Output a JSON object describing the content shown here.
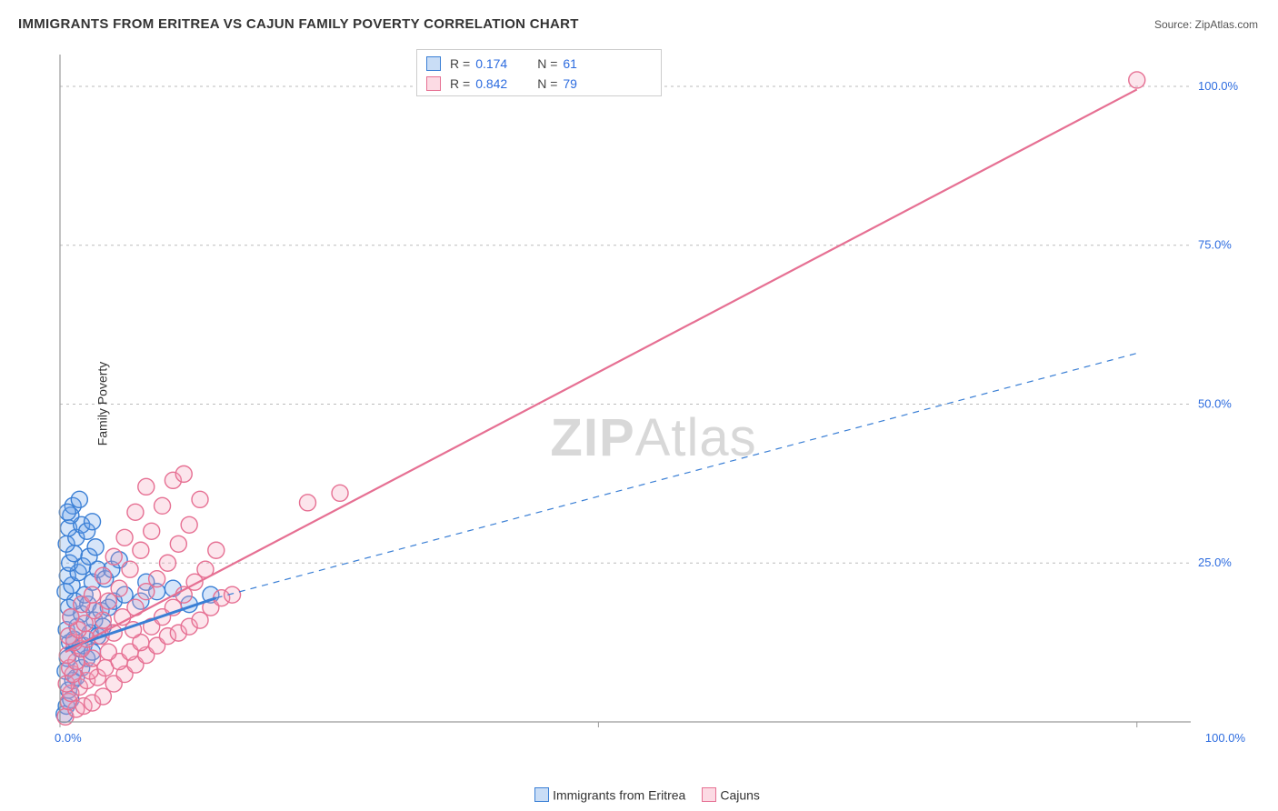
{
  "title": "IMMIGRANTS FROM ERITREA VS CAJUN FAMILY POVERTY CORRELATION CHART",
  "source_label": "Source: ZipAtlas.com",
  "y_axis_label": "Family Poverty",
  "watermark_bold": "ZIP",
  "watermark_light": "Atlas",
  "chart": {
    "type": "scatter-with-regression",
    "background_color": "#ffffff",
    "plot_border_left_color": "#9a9a9a",
    "plot_border_bottom_color": "#9a9a9a",
    "grid_color": "#bbbbbb",
    "grid_dash": "3,4",
    "xlim": [
      0,
      105
    ],
    "ylim": [
      0,
      105
    ],
    "x_ticks": [
      0,
      50,
      100
    ],
    "x_tick_labels": [
      "0.0%",
      "",
      "100.0%"
    ],
    "y_ticks": [
      25,
      50,
      75,
      100
    ],
    "y_tick_labels": [
      "25.0%",
      "50.0%",
      "75.0%",
      "100.0%"
    ],
    "tick_label_color": "#2d6cdf",
    "tick_fontsize": 13,
    "marker_radius": 9,
    "marker_stroke_width": 1.4,
    "marker_fill_opacity": 0.28,
    "series": [
      {
        "id": "eritrea",
        "label": "Immigrants from Eritrea",
        "color_stroke": "#3a7fd5",
        "color_fill": "#6aa3e8",
        "R": "0.174",
        "N": "61",
        "points": [
          [
            0.4,
            1.2
          ],
          [
            0.6,
            2.5
          ],
          [
            1.0,
            3.5
          ],
          [
            0.8,
            5.0
          ],
          [
            1.2,
            6.5
          ],
          [
            0.5,
            8.0
          ],
          [
            1.5,
            7.0
          ],
          [
            2.0,
            8.5
          ],
          [
            0.7,
            10.0
          ],
          [
            1.8,
            11.5
          ],
          [
            2.5,
            10.0
          ],
          [
            0.9,
            12.5
          ],
          [
            1.3,
            13.0
          ],
          [
            2.2,
            12.0
          ],
          [
            3.0,
            11.0
          ],
          [
            0.6,
            14.5
          ],
          [
            1.6,
            15.0
          ],
          [
            2.8,
            14.0
          ],
          [
            3.5,
            13.5
          ],
          [
            1.0,
            16.5
          ],
          [
            2.0,
            17.0
          ],
          [
            0.8,
            18.0
          ],
          [
            3.2,
            16.0
          ],
          [
            4.0,
            15.0
          ],
          [
            1.4,
            19.0
          ],
          [
            2.6,
            18.5
          ],
          [
            0.5,
            20.5
          ],
          [
            3.8,
            17.5
          ],
          [
            1.1,
            21.5
          ],
          [
            2.3,
            20.0
          ],
          [
            0.7,
            23.0
          ],
          [
            4.5,
            18.0
          ],
          [
            1.7,
            23.5
          ],
          [
            3.0,
            22.0
          ],
          [
            0.9,
            25.0
          ],
          [
            2.1,
            24.5
          ],
          [
            5.0,
            19.0
          ],
          [
            1.3,
            26.5
          ],
          [
            3.5,
            24.0
          ],
          [
            0.6,
            28.0
          ],
          [
            2.7,
            26.0
          ],
          [
            4.2,
            22.5
          ],
          [
            1.5,
            29.0
          ],
          [
            0.8,
            30.5
          ],
          [
            6.0,
            20.0
          ],
          [
            3.3,
            27.5
          ],
          [
            2.0,
            31.0
          ],
          [
            1.0,
            32.5
          ],
          [
            7.5,
            19.0
          ],
          [
            4.8,
            24.0
          ],
          [
            2.5,
            30.0
          ],
          [
            1.2,
            34.0
          ],
          [
            0.7,
            33.0
          ],
          [
            8.0,
            22.0
          ],
          [
            5.5,
            25.5
          ],
          [
            3.0,
            31.5
          ],
          [
            1.8,
            35.0
          ],
          [
            9.0,
            20.5
          ],
          [
            10.5,
            21.0
          ],
          [
            12.0,
            18.5
          ],
          [
            14.0,
            20.0
          ]
        ],
        "regression_solid": {
          "from": [
            0.5,
            11.5
          ],
          "to": [
            14.5,
            19.5
          ],
          "width": 3
        },
        "regression_dashed": {
          "from": [
            14.5,
            19.5
          ],
          "to": [
            100,
            58
          ],
          "width": 1.2,
          "dash": "7,6"
        }
      },
      {
        "id": "cajuns",
        "label": "Cajuns",
        "color_stroke": "#e67093",
        "color_fill": "#f5a3ba",
        "R": "0.842",
        "N": "79",
        "points": [
          [
            0.5,
            0.8
          ],
          [
            1.5,
            2.0
          ],
          [
            0.8,
            3.2
          ],
          [
            2.2,
            2.5
          ],
          [
            1.0,
            4.5
          ],
          [
            3.0,
            3.0
          ],
          [
            1.8,
            5.5
          ],
          [
            0.6,
            6.0
          ],
          [
            2.5,
            6.5
          ],
          [
            4.0,
            4.0
          ],
          [
            1.2,
            7.5
          ],
          [
            3.5,
            7.0
          ],
          [
            0.9,
            8.5
          ],
          [
            2.8,
            8.0
          ],
          [
            5.0,
            6.0
          ],
          [
            1.5,
            9.5
          ],
          [
            4.2,
            8.5
          ],
          [
            0.7,
            10.5
          ],
          [
            3.0,
            10.0
          ],
          [
            6.0,
            7.5
          ],
          [
            2.0,
            11.5
          ],
          [
            5.5,
            9.5
          ],
          [
            1.3,
            12.5
          ],
          [
            4.5,
            11.0
          ],
          [
            7.0,
            9.0
          ],
          [
            2.5,
            13.0
          ],
          [
            0.8,
            13.5
          ],
          [
            6.5,
            11.0
          ],
          [
            3.8,
            13.5
          ],
          [
            8.0,
            10.5
          ],
          [
            1.7,
            14.5
          ],
          [
            5.0,
            14.0
          ],
          [
            2.3,
            15.5
          ],
          [
            7.5,
            12.5
          ],
          [
            9.0,
            12.0
          ],
          [
            4.0,
            16.0
          ],
          [
            1.0,
            16.5
          ],
          [
            6.8,
            14.5
          ],
          [
            3.2,
            17.5
          ],
          [
            10.0,
            13.5
          ],
          [
            5.8,
            16.5
          ],
          [
            2.0,
            18.5
          ],
          [
            8.5,
            15.0
          ],
          [
            4.5,
            19.0
          ],
          [
            11.0,
            14.0
          ],
          [
            7.0,
            18.0
          ],
          [
            3.0,
            20.0
          ],
          [
            9.5,
            16.5
          ],
          [
            5.5,
            21.0
          ],
          [
            12.0,
            15.0
          ],
          [
            8.0,
            20.5
          ],
          [
            4.0,
            23.0
          ],
          [
            10.5,
            18.0
          ],
          [
            6.5,
            24.0
          ],
          [
            13.0,
            16.0
          ],
          [
            9.0,
            22.5
          ],
          [
            5.0,
            26.0
          ],
          [
            11.5,
            20.0
          ],
          [
            7.5,
            27.0
          ],
          [
            14.0,
            18.0
          ],
          [
            10.0,
            25.0
          ],
          [
            6.0,
            29.0
          ],
          [
            12.5,
            22.0
          ],
          [
            8.5,
            30.0
          ],
          [
            15.0,
            19.5
          ],
          [
            11.0,
            28.0
          ],
          [
            7.0,
            33.0
          ],
          [
            13.5,
            24.0
          ],
          [
            9.5,
            34.0
          ],
          [
            12.0,
            31.0
          ],
          [
            8.0,
            37.0
          ],
          [
            14.5,
            27.0
          ],
          [
            10.5,
            38.0
          ],
          [
            13.0,
            35.0
          ],
          [
            16.0,
            20.0
          ],
          [
            11.5,
            39.0
          ],
          [
            23.0,
            34.5
          ],
          [
            26.0,
            36.0
          ],
          [
            100.0,
            101.0
          ]
        ],
        "regression_solid": {
          "from": [
            0.5,
            11.0
          ],
          "to": [
            100,
            99.5
          ],
          "width": 2.2
        }
      }
    ],
    "bottom_legend": {
      "items": [
        {
          "label": "Immigrants from Eritrea",
          "stroke": "#3a7fd5",
          "fill": "#c9ddf6"
        },
        {
          "label": "Cajuns",
          "stroke": "#e67093",
          "fill": "#fcdbe4"
        }
      ]
    },
    "r_legend": {
      "R_symbol": "R",
      "N_symbol": "N",
      "eq": "=",
      "rows": [
        {
          "swatch_stroke": "#3a7fd5",
          "swatch_fill": "#c9ddf6",
          "R": "0.174",
          "N": "61"
        },
        {
          "swatch_stroke": "#e67093",
          "swatch_fill": "#fcdbe4",
          "R": "0.842",
          "N": "79"
        }
      ]
    }
  }
}
